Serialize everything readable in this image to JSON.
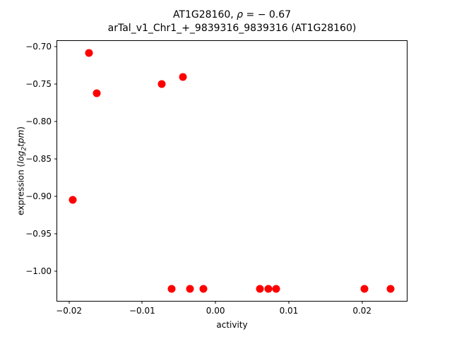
{
  "title": {
    "line1_prefix": "AT1G28160, ",
    "line1_rho": "ρ",
    "line1_rest": " = − 0.67",
    "line2": "arTal_v1_Chr1_+_9839316_9839316 (AT1G28160)"
  },
  "ylabel_parts": {
    "prefix": "expression (",
    "math_log": "log",
    "math_sub": "2",
    "math_tpm": "tpm",
    "suffix": ")"
  },
  "chart_data": {
    "type": "scatter",
    "title": "AT1G28160, ρ = − 0.67",
    "subtitle": "arTal_v1_Chr1_+_9839316_9839316 (AT1G28160)",
    "xlabel": "activity",
    "ylabel": "expression (log2tpm)",
    "xlim": [
      -0.0216,
      0.0261
    ],
    "ylim": [
      -1.04,
      -0.692
    ],
    "x_ticks": [
      -0.02,
      -0.01,
      0,
      0.01,
      0.02
    ],
    "x_tick_labels": [
      "−0.02",
      "−0.01",
      "0.00",
      "0.01",
      "0.02"
    ],
    "y_ticks": [
      -0.7,
      -0.75,
      -0.8,
      -0.85,
      -0.9,
      -0.95,
      -1.0
    ],
    "y_tick_labels": [
      "−0.70",
      "−0.75",
      "−0.80",
      "−0.85",
      "−0.90",
      "−0.95",
      "−1.00"
    ],
    "grid": false,
    "legend": null,
    "marker_color": "#ff0000",
    "marker_diameter_px": 11,
    "points": [
      {
        "x": -0.0195,
        "y": -0.905
      },
      {
        "x": -0.0173,
        "y": -0.708
      },
      {
        "x": -0.0162,
        "y": -0.762
      },
      {
        "x": -0.0073,
        "y": -0.75
      },
      {
        "x": -0.0044,
        "y": -0.74
      },
      {
        "x": -0.006,
        "y": -1.024
      },
      {
        "x": -0.0035,
        "y": -1.024
      },
      {
        "x": -0.0017,
        "y": -1.024
      },
      {
        "x": 0.0061,
        "y": -1.024
      },
      {
        "x": 0.0072,
        "y": -1.024
      },
      {
        "x": 0.0083,
        "y": -1.024
      },
      {
        "x": 0.0203,
        "y": -1.024
      },
      {
        "x": 0.0239,
        "y": -1.024
      }
    ]
  }
}
